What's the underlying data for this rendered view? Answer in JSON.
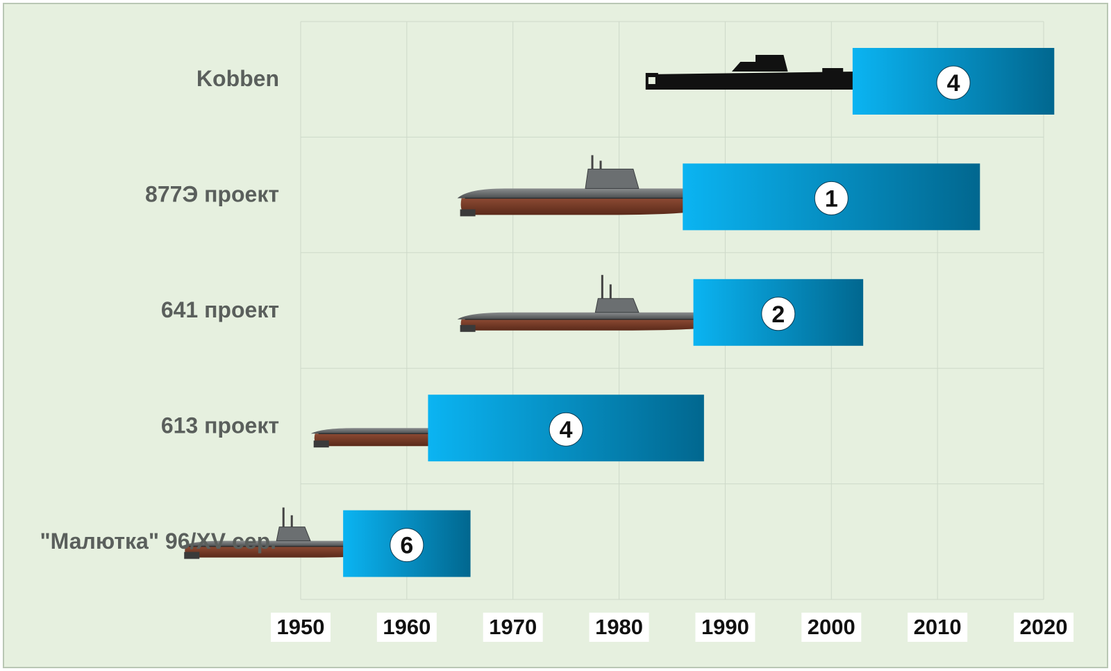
{
  "colors": {
    "background": "#e6f0df",
    "grid": "#cdd9c9",
    "bar_start": "#0bb4f2",
    "bar_end": "#01678f",
    "label_text": "#5a5f5c",
    "year_box": "#ffffff",
    "year_text": "#111111"
  },
  "chart_data": {
    "type": "bar",
    "orientation": "horizontal",
    "title": "",
    "xlabel": "",
    "ylabel": "",
    "xlim": [
      1950,
      2020
    ],
    "grid": true,
    "xticks": [
      "1950",
      "1960",
      "1970",
      "1980",
      "1990",
      "2000",
      "2010",
      "2020"
    ],
    "categories": [
      "Kobben",
      "877Э проект",
      "641 проект",
      "613 проект",
      "\"Малютка\" 96/XV сер."
    ],
    "bars": [
      {
        "category": "Kobben",
        "start": 2002,
        "end": 2021,
        "label": "4"
      },
      {
        "category": "877Э проект",
        "start": 1986,
        "end": 2014,
        "label": "1"
      },
      {
        "category": "641 проект",
        "start": 1987,
        "end": 2003,
        "label": "2"
      },
      {
        "category": "613 проект",
        "start": 1962,
        "end": 1988,
        "label": "4"
      },
      {
        "category": "\"Малютка\" 96/XV сер.",
        "start": 1954,
        "end": 1966,
        "label": "6"
      }
    ],
    "illustrations": [
      {
        "category": "Kobben",
        "icon": "submarine-silhouette-icon",
        "start": 1982.5,
        "end": 2002.8
      },
      {
        "category": "877Э проект",
        "icon": "submarine-877-icon",
        "start": 1964.5,
        "end": 1988.2
      },
      {
        "category": "641 проект",
        "icon": "submarine-641-icon",
        "start": 1964.5,
        "end": 1990
      },
      {
        "category": "613 проект",
        "icon": "submarine-613-icon",
        "start": 1950.7,
        "end": 1972.5
      },
      {
        "category": "\"Малютка\" 96/XV сер.",
        "icon": "submarine-m-icon",
        "start": 1938.5,
        "end": 1959
      }
    ]
  }
}
